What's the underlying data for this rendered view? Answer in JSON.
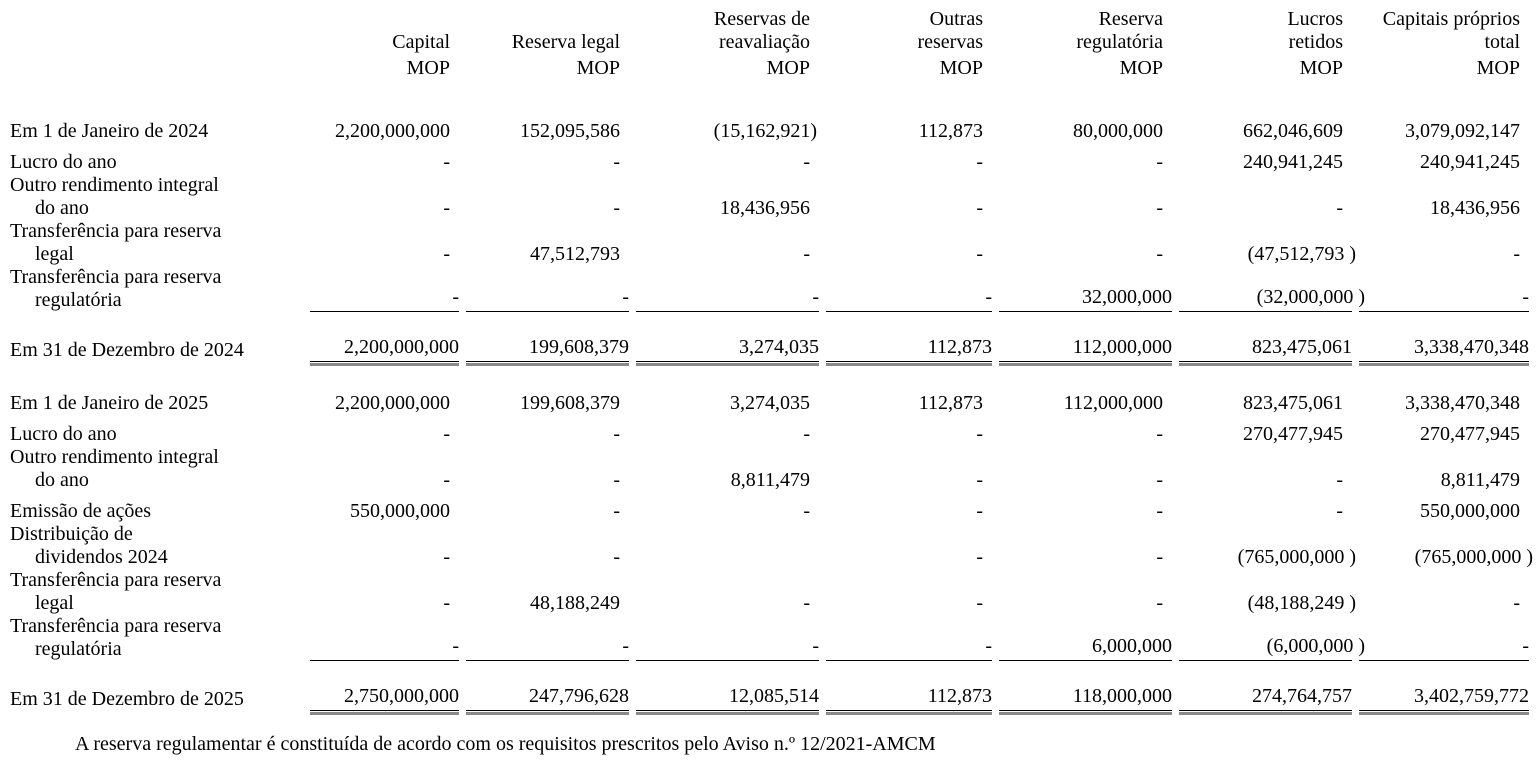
{
  "table": {
    "columns": [
      {
        "title": "Capital",
        "unit": "MOP"
      },
      {
        "title": "Reserva legal",
        "unit": "MOP"
      },
      {
        "title": "Reservas de\nreavaliação",
        "unit": "MOP"
      },
      {
        "title": "Outras\nreservas",
        "unit": "MOP"
      },
      {
        "title": "Reserva\nregulatória",
        "unit": "MOP"
      },
      {
        "title": "Lucros\nretidos",
        "unit": "MOP"
      },
      {
        "title": "Capitais próprios\ntotal",
        "unit": "MOP"
      }
    ],
    "rows": [
      {
        "label": "Em 1 de Janeiro de 2024",
        "type": "opening",
        "values": [
          "2,200,000,000",
          "152,095,586",
          "(15,162,921)",
          "112,873",
          "80,000,000",
          "662,046,609",
          "3,079,092,147"
        ]
      },
      {
        "label": "Lucro do ano",
        "type": "movement",
        "values": [
          "-",
          "-",
          "-",
          "-",
          "-",
          "240,941,245",
          "240,941,245"
        ]
      },
      {
        "label": "Outro rendimento integral\ndo ano",
        "type": "movement",
        "values": [
          "-",
          "-",
          "18,436,956",
          "-",
          "-",
          "-",
          "18,436,956"
        ]
      },
      {
        "label": "Transferência para reserva\nlegal",
        "type": "movement",
        "values": [
          "-",
          "47,512,793",
          "-",
          "-",
          "-",
          "(47,512,793 )",
          "-"
        ]
      },
      {
        "label": "Transferência para reserva\nregulatória",
        "type": "ruled",
        "values": [
          "-",
          "-",
          "-",
          "-",
          "32,000,000",
          "(32,000,000 )",
          "-"
        ]
      },
      {
        "label": "Em 31 de Dezembro de 2024",
        "type": "total",
        "values": [
          "2,200,000,000",
          "199,608,379",
          "3,274,035",
          "112,873",
          "112,000,000",
          "823,475,061",
          "3,338,470,348"
        ]
      },
      {
        "label": "Em 1 de Janeiro de 2025",
        "type": "opening2",
        "values": [
          "2,200,000,000",
          "199,608,379",
          "3,274,035",
          "112,873",
          "112,000,000",
          "823,475,061",
          "3,338,470,348"
        ]
      },
      {
        "label": "Lucro do ano",
        "type": "movement",
        "values": [
          "-",
          "-",
          "-",
          "-",
          "-",
          "270,477,945",
          "270,477,945"
        ]
      },
      {
        "label": "Outro rendimento integral\ndo ano",
        "type": "movement",
        "values": [
          "-",
          "-",
          "8,811,479",
          "-",
          "-",
          "-",
          "8,811,479"
        ]
      },
      {
        "label": "Emissão de ações",
        "type": "movement",
        "values": [
          "550,000,000",
          "-",
          "-",
          "-",
          "-",
          "-",
          "550,000,000"
        ]
      },
      {
        "label": "Distribuição de\ndividendos 2024",
        "type": "movement",
        "values": [
          "-",
          "-",
          "",
          "-",
          "-",
          "(765,000,000 )",
          "(765,000,000 )"
        ]
      },
      {
        "label": "Transferência para reserva\nlegal",
        "type": "movement",
        "values": [
          "-",
          "48,188,249",
          "-",
          "-",
          "-",
          "(48,188,249 )",
          "-"
        ]
      },
      {
        "label": "Transferência para reserva\nregulatória",
        "type": "ruled",
        "values": [
          "-",
          "-",
          "-",
          "-",
          "6,000,000",
          "(6,000,000 )",
          "-"
        ]
      },
      {
        "label": "Em 31 de Dezembro de 2025",
        "type": "total",
        "values": [
          "2,750,000,000",
          "247,796,628",
          "12,085,514",
          "112,873",
          "118,000,000",
          "274,764,757",
          "3,402,759,772"
        ]
      }
    ]
  },
  "footnote": "A reserva regulamentar é constituída de acordo com os requisitos prescritos pelo Aviso n.º 12/2021-AMCM"
}
